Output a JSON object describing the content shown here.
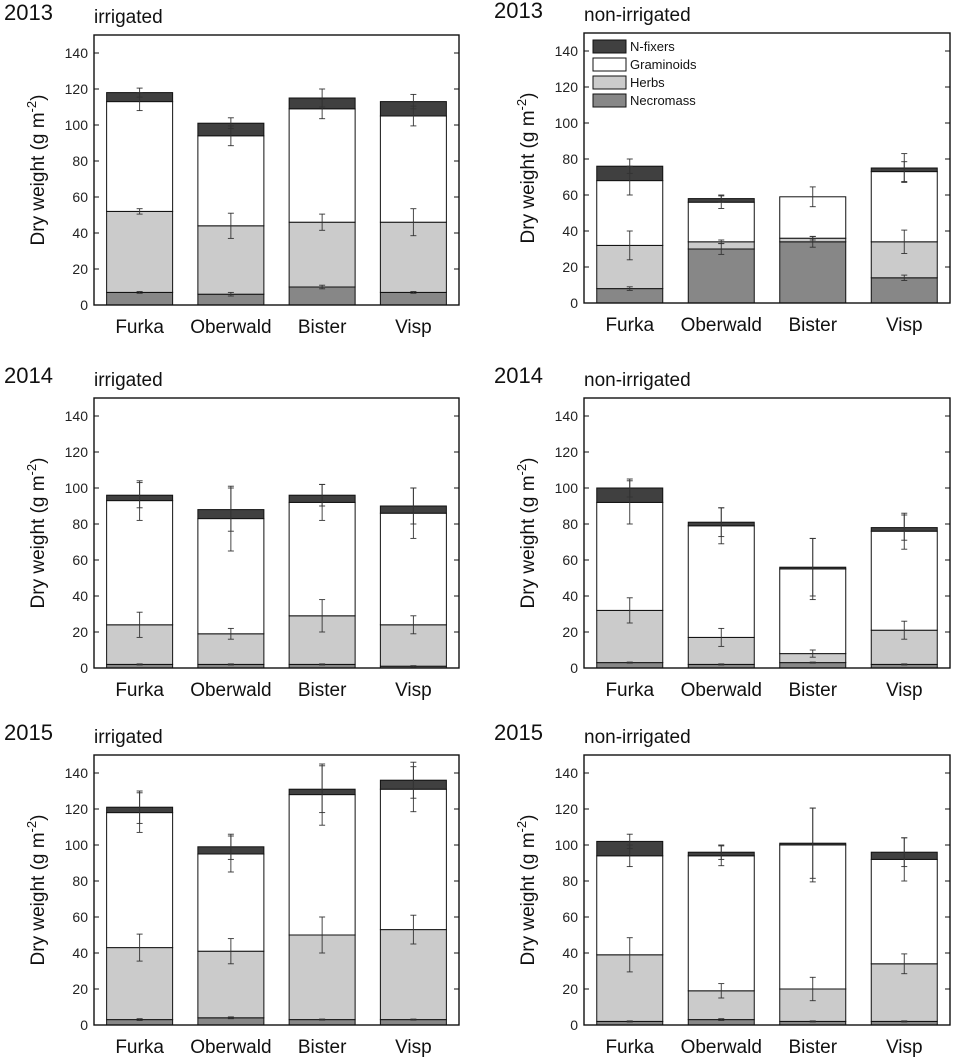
{
  "figure": {
    "ylabel": "Dry weight (g m-2)",
    "ylabel_main": "Dry weight (g m",
    "ylabel_exp": "-2",
    "ylabel_close": ")",
    "yticks": [
      0,
      20,
      40,
      60,
      80,
      100,
      120,
      140
    ],
    "ylim": [
      0,
      150
    ]
  },
  "colors": {
    "Necromass": "#878787",
    "Herbs": "#cbcbcb",
    "Graminoids": "#ffffff",
    "N-fixers": "#404040",
    "stroke": "#111111"
  },
  "chart_data": [
    {
      "type": "bar",
      "stacked": true,
      "year": "2013",
      "treatment": "irrigated",
      "categories": [
        "Furka",
        "Oberwald",
        "Bister",
        "Visp"
      ],
      "series": [
        {
          "name": "Necromass",
          "values": [
            7,
            6,
            10,
            7
          ],
          "errors": [
            0.5,
            1,
            1,
            0.5
          ]
        },
        {
          "name": "Herbs",
          "values": [
            45,
            38,
            36,
            39
          ],
          "errors": [
            1.5,
            7,
            4.5,
            7.5
          ]
        },
        {
          "name": "Graminoids",
          "values": [
            61,
            50,
            63,
            59
          ],
          "errors": [
            5,
            5.5,
            5.5,
            5.5
          ]
        },
        {
          "name": "N-fixers",
          "values": [
            5,
            7,
            6,
            8
          ],
          "errors": [
            2.5,
            3,
            5,
            4
          ]
        }
      ],
      "legend": false
    },
    {
      "type": "bar",
      "stacked": true,
      "year": "2013",
      "treatment": "non-irrigated",
      "categories": [
        "Furka",
        "Oberwald",
        "Bister",
        "Visp"
      ],
      "series": [
        {
          "name": "Necromass",
          "values": [
            8,
            30,
            34,
            14
          ],
          "errors": [
            1,
            3,
            3,
            1.5
          ]
        },
        {
          "name": "Herbs",
          "values": [
            24,
            4,
            2,
            20
          ],
          "errors": [
            8,
            1,
            1,
            6.5
          ]
        },
        {
          "name": "Graminoids",
          "values": [
            36,
            22,
            23,
            39
          ],
          "errors": [
            8,
            3.5,
            5.5,
            5.5
          ]
        },
        {
          "name": "N-fixers",
          "values": [
            8,
            2,
            0,
            2
          ],
          "errors": [
            4,
            2,
            0,
            8
          ]
        }
      ],
      "legend": true,
      "legend_position": "top-left",
      "legend_order": [
        "N-fixers",
        "Graminoids",
        "Herbs",
        "Necromass"
      ]
    },
    {
      "type": "bar",
      "stacked": true,
      "year": "2014",
      "treatment": "irrigated",
      "categories": [
        "Furka",
        "Oberwald",
        "Bister",
        "Visp"
      ],
      "series": [
        {
          "name": "Necromass",
          "values": [
            2,
            2,
            2,
            1
          ],
          "errors": [
            0.3,
            0.3,
            0.3,
            0.3
          ]
        },
        {
          "name": "Herbs",
          "values": [
            22,
            17,
            27,
            23
          ],
          "errors": [
            7,
            3,
            9,
            5
          ]
        },
        {
          "name": "Graminoids",
          "values": [
            69,
            64,
            63,
            62
          ],
          "errors": [
            11,
            18,
            10,
            14
          ]
        },
        {
          "name": "N-fixers",
          "values": [
            3,
            5,
            4,
            4
          ],
          "errors": [
            7,
            12,
            6,
            10
          ]
        }
      ],
      "legend": false
    },
    {
      "type": "bar",
      "stacked": true,
      "year": "2014",
      "treatment": "non-irrigated",
      "categories": [
        "Furka",
        "Oberwald",
        "Bister",
        "Visp"
      ],
      "series": [
        {
          "name": "Necromass",
          "values": [
            3,
            2,
            3,
            2
          ],
          "errors": [
            0.3,
            0.3,
            0.3,
            0.3
          ]
        },
        {
          "name": "Herbs",
          "values": [
            29,
            15,
            5,
            19
          ],
          "errors": [
            7,
            5,
            2,
            5
          ]
        },
        {
          "name": "Graminoids",
          "values": [
            60,
            62,
            47,
            55
          ],
          "errors": [
            12,
            10,
            17,
            10
          ]
        },
        {
          "name": "N-fixers",
          "values": [
            8,
            2,
            1,
            2
          ],
          "errors": [
            5,
            8,
            16,
            7
          ]
        }
      ],
      "legend": false
    },
    {
      "type": "bar",
      "stacked": true,
      "year": "2015",
      "treatment": "irrigated",
      "categories": [
        "Furka",
        "Oberwald",
        "Bister",
        "Visp"
      ],
      "series": [
        {
          "name": "Necromass",
          "values": [
            3,
            4,
            3,
            3
          ],
          "errors": [
            0.5,
            0.5,
            0.3,
            0.3
          ]
        },
        {
          "name": "Herbs",
          "values": [
            40,
            37,
            47,
            50
          ],
          "errors": [
            7.5,
            7,
            10,
            8
          ]
        },
        {
          "name": "Graminoids",
          "values": [
            75,
            54,
            78,
            78
          ],
          "errors": [
            11,
            10,
            17,
            12.5
          ]
        },
        {
          "name": "N-fixers",
          "values": [
            3,
            4,
            3,
            5
          ],
          "errors": [
            9,
            7,
            13,
            10
          ]
        }
      ],
      "legend": false
    },
    {
      "type": "bar",
      "stacked": true,
      "year": "2015",
      "treatment": "non-irrigated",
      "categories": [
        "Furka",
        "Oberwald",
        "Bister",
        "Visp"
      ],
      "series": [
        {
          "name": "Necromass",
          "values": [
            2,
            3,
            2,
            2
          ],
          "errors": [
            0.3,
            0.5,
            0.3,
            0.3
          ]
        },
        {
          "name": "Herbs",
          "values": [
            37,
            16,
            18,
            32
          ],
          "errors": [
            9.5,
            4,
            6.5,
            5.5
          ]
        },
        {
          "name": "Graminoids",
          "values": [
            55,
            75,
            80,
            58
          ],
          "errors": [
            6,
            5.5,
            20.5,
            12
          ]
        },
        {
          "name": "N-fixers",
          "values": [
            8,
            2,
            1,
            4
          ],
          "errors": [
            4,
            4,
            19.5,
            8
          ]
        }
      ],
      "legend": false
    }
  ]
}
